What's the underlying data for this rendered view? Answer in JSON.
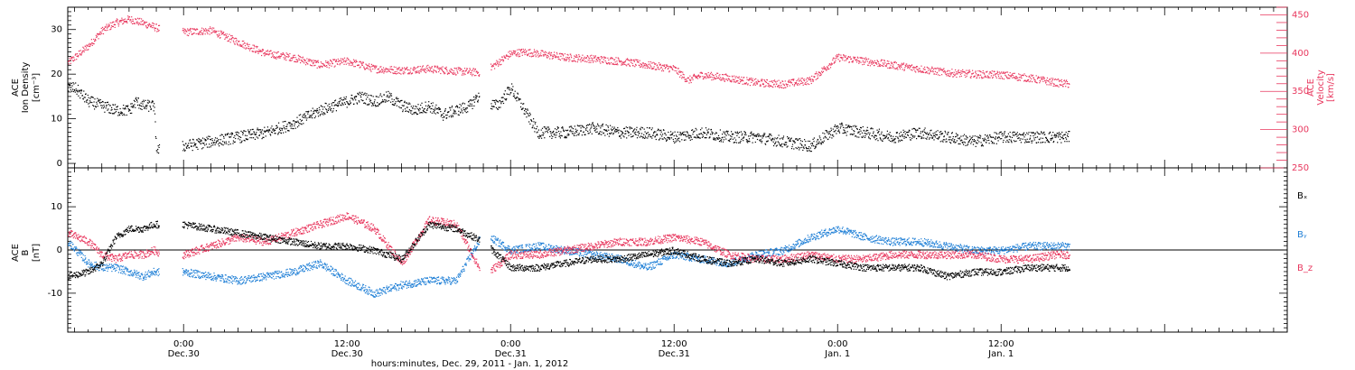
{
  "colors": {
    "black": "#000000",
    "pink": "#e8365d",
    "blue": "#1f7fd6"
  },
  "x_axis": {
    "label": "hours:minutes, Dec. 29, 2011 - Jan. 1, 2012",
    "range_hours": [
      -8.5,
      81
    ],
    "ticks": [
      {
        "hour": 0,
        "time": "0:00",
        "date": "Dec.30"
      },
      {
        "hour": 12,
        "time": "12:00",
        "date": "Dec.30"
      },
      {
        "hour": 24,
        "time": "0:00",
        "date": "Dec.31"
      },
      {
        "hour": 36,
        "time": "12:00",
        "date": "Dec.31"
      },
      {
        "hour": 48,
        "time": "0:00",
        "date": "Jan. 1"
      },
      {
        "hour": 60,
        "time": "12:00",
        "date": "Jan. 1"
      }
    ]
  },
  "chart_data": [
    {
      "type": "scatter",
      "panel": "plasma",
      "ylabel_left": [
        "ACE",
        "Ion Density",
        "[cm⁻³]"
      ],
      "ylabel_right": [
        "ACE",
        "Velocity",
        "[km/s]"
      ],
      "ylim_left": [
        -1,
        35
      ],
      "yticks_left": [
        0,
        10,
        20,
        30
      ],
      "ylim_right": [
        250,
        460
      ],
      "yticks_right": [
        250,
        300,
        350,
        400,
        450
      ],
      "series": [
        {
          "axis": "left",
          "color": "#000000",
          "x": [
            -8.5,
            -8,
            -7,
            -6,
            -5,
            -4,
            -3.5,
            -3,
            -2.2,
            -2,
            0,
            2,
            4,
            6,
            8,
            10,
            12,
            13,
            14,
            15,
            16,
            17,
            18,
            19,
            20,
            21,
            21.5,
            22,
            23,
            24,
            25,
            26,
            28,
            30,
            32,
            34,
            36,
            38,
            40,
            42,
            44,
            46,
            48,
            50,
            52,
            54,
            56,
            58,
            60,
            62,
            64,
            65
          ],
          "y": [
            17,
            17,
            14,
            13,
            12,
            12,
            14,
            13,
            13,
            3,
            4,
            5,
            6,
            7,
            9,
            12,
            14,
            15,
            14,
            15,
            13,
            12,
            13,
            11,
            12,
            13,
            15,
            14,
            13,
            17,
            12,
            7,
            7,
            8,
            7,
            7,
            6,
            7,
            6,
            6,
            5,
            4,
            8,
            7,
            6,
            7,
            6,
            5,
            6,
            6,
            6,
            6
          ]
        },
        {
          "axis": "right",
          "color": "#e8365d",
          "x": [
            -8.5,
            -8,
            -7,
            -6,
            -5,
            -4,
            -3,
            -2.2,
            -1.5,
            0,
            2,
            4,
            6,
            8,
            10,
            12,
            14,
            16,
            18,
            20,
            22,
            24,
            25,
            26,
            28,
            30,
            32,
            34,
            36,
            37,
            38,
            40,
            42,
            44,
            46,
            48,
            50,
            52,
            54,
            56,
            58,
            60,
            62,
            64,
            65
          ],
          "y": [
            388,
            395,
            410,
            430,
            440,
            445,
            440,
            435,
            430,
            428,
            430,
            415,
            400,
            395,
            385,
            390,
            380,
            378,
            380,
            377,
            375,
            400,
            402,
            400,
            395,
            393,
            390,
            385,
            380,
            365,
            372,
            368,
            362,
            360,
            365,
            395,
            390,
            385,
            380,
            375,
            373,
            372,
            368,
            362,
            360
          ]
        }
      ]
    },
    {
      "type": "scatter",
      "panel": "magnetic",
      "ylabel_left": [
        "ACE",
        "B",
        "[nT]"
      ],
      "ylim": [
        -19,
        19
      ],
      "yticks": [
        -10,
        0,
        10
      ],
      "series": [
        {
          "name": "Bₓ",
          "color": "#000000",
          "x": [
            -8.5,
            -7,
            -6,
            -5,
            -4,
            -3,
            -2.2,
            -1.5,
            0,
            2,
            4,
            6,
            8,
            10,
            12,
            14,
            16,
            18,
            20,
            22,
            24,
            26,
            28,
            30,
            32,
            34,
            36,
            38,
            40,
            42,
            44,
            46,
            48,
            50,
            52,
            54,
            56,
            58,
            60,
            62,
            64,
            65
          ],
          "y": [
            -6,
            -5,
            -3,
            3,
            5,
            5,
            6,
            6,
            6,
            5,
            4,
            3,
            2,
            1,
            1,
            0,
            -2,
            6,
            5,
            2,
            -4,
            -4,
            -3,
            -2,
            -2,
            -1,
            0,
            -2,
            -3,
            -2,
            -3,
            -2,
            -3,
            -4,
            -4,
            -4,
            -6,
            -5,
            -5,
            -4,
            -4,
            -4
          ]
        },
        {
          "name": "Bᵧ",
          "color": "#1f7fd6",
          "x": [
            -8.5,
            -7,
            -6,
            -5,
            -4,
            -3,
            -2.2,
            0,
            2,
            4,
            6,
            8,
            10,
            12,
            14,
            16,
            18,
            20,
            22,
            24,
            26,
            28,
            30,
            32,
            34,
            36,
            38,
            40,
            42,
            44,
            46,
            48,
            50,
            52,
            54,
            56,
            58,
            60,
            62,
            64,
            65
          ],
          "y": [
            2,
            -3,
            -4,
            -4,
            -5,
            -6,
            -5,
            -5,
            -6,
            -7,
            -6,
            -5,
            -3,
            -7,
            -10,
            -8,
            -7,
            -7,
            4,
            0,
            1,
            0,
            -1,
            -2,
            -4,
            -1,
            -2,
            -3,
            -1,
            0,
            3,
            5,
            3,
            2,
            2,
            1,
            0,
            0,
            1,
            1,
            1
          ]
        },
        {
          "name": "B_z",
          "color": "#e8365d",
          "x": [
            -8.5,
            -7,
            -6,
            -5,
            -4,
            -3,
            -2.2,
            -1.5,
            0,
            2,
            4,
            6,
            8,
            10,
            12,
            14,
            16,
            18,
            20,
            22,
            24,
            26,
            28,
            30,
            32,
            34,
            36,
            38,
            40,
            42,
            44,
            46,
            48,
            50,
            52,
            54,
            56,
            58,
            60,
            62,
            64,
            65
          ],
          "y": [
            4,
            2,
            -1,
            -2,
            -1,
            -1,
            0,
            -1,
            -1,
            1,
            3,
            2,
            4,
            6,
            8,
            5,
            -3,
            7,
            6,
            -6,
            -1,
            -1,
            0,
            1,
            2,
            2,
            3,
            2,
            -1,
            -2,
            -2,
            -1,
            -2,
            -2,
            -1,
            -1,
            -1,
            -1,
            -2,
            -2,
            -1,
            -1
          ]
        }
      ]
    }
  ]
}
